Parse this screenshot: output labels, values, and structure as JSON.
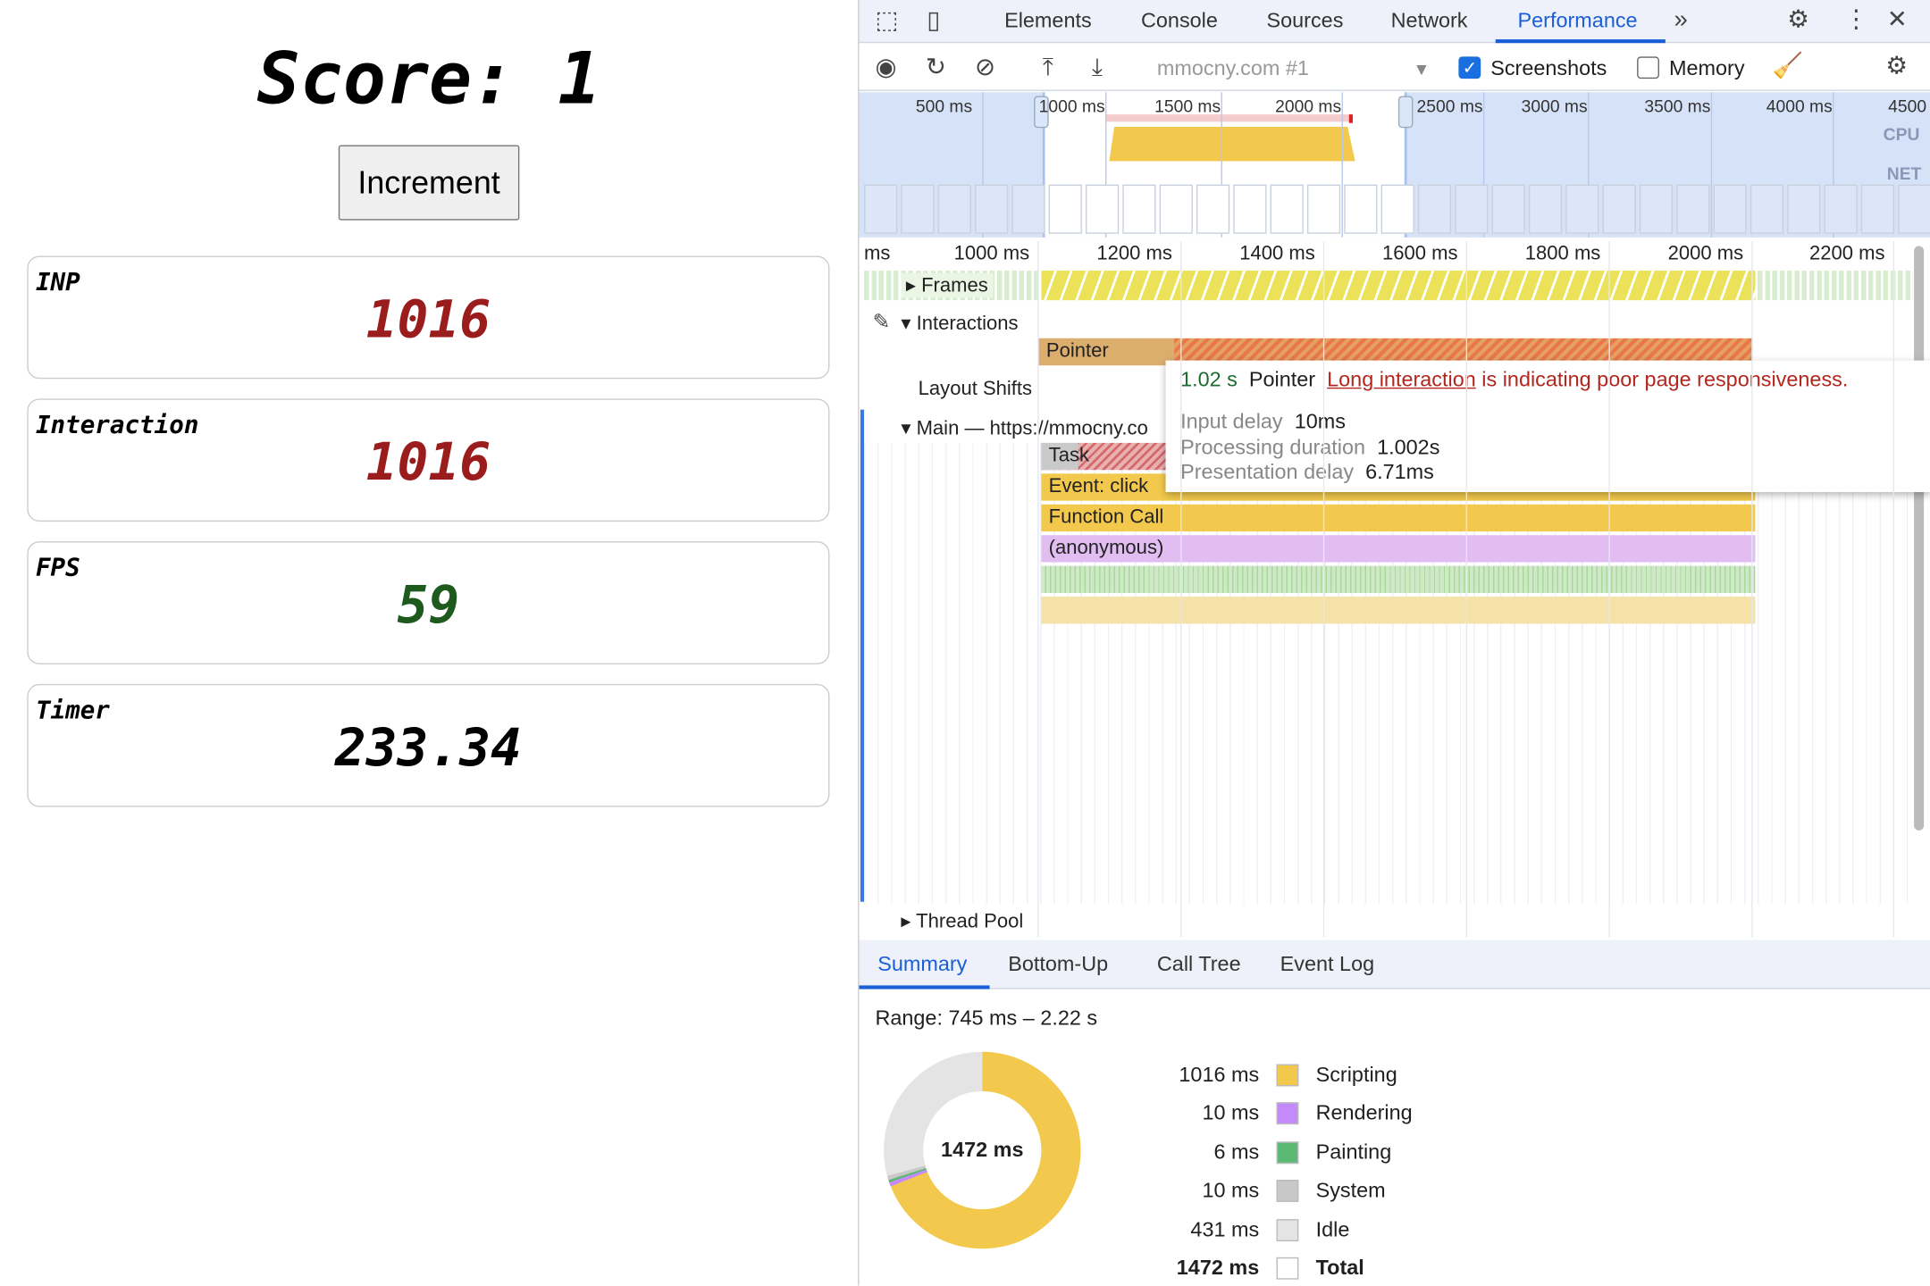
{
  "page": {
    "score_label": "Score:",
    "score_value": "1",
    "increment_label": "Increment",
    "cards": [
      {
        "label": "INP",
        "value": "1016",
        "color": "#9b1c1c"
      },
      {
        "label": "Interaction",
        "value": "1016",
        "color": "#9b1c1c"
      },
      {
        "label": "FPS",
        "value": "59",
        "color": "#1e5a1e"
      },
      {
        "label": "Timer",
        "value": "233.34",
        "color": "#000000"
      }
    ]
  },
  "devtools": {
    "tabs": [
      "Elements",
      "Console",
      "Sources",
      "Network",
      "Performance"
    ],
    "active_tab": "Performance",
    "toolbar": {
      "target": "mmocny.com #1",
      "screenshots_label": "Screenshots",
      "screenshots_checked": true,
      "memory_label": "Memory",
      "memory_checked": false
    },
    "overview": {
      "ticks": [
        "500 ms",
        "1000 ms",
        "1500 ms",
        "2000 ms",
        "2500 ms",
        "3000 ms",
        "3500 ms",
        "4000 ms",
        "4500"
      ],
      "cpu_label": "CPU",
      "net_label": "NET"
    },
    "ruler": [
      "ms",
      "1000 ms",
      "1200 ms",
      "1400 ms",
      "1600 ms",
      "1800 ms",
      "2000 ms",
      "2200 ms"
    ],
    "tracks": {
      "frames": "Frames",
      "interactions": "Interactions",
      "pointer": "Pointer",
      "layout_shifts": "Layout Shifts",
      "main": "Main — https://mmocny.co",
      "thread_pool": "Thread Pool"
    },
    "flame": [
      "Task",
      "Event: click",
      "Function Call",
      "(anonymous)"
    ],
    "tooltip": {
      "duration": "1.02 s",
      "type": "Pointer",
      "link": "Long interaction",
      "message": " is indicating poor page responsiveness.",
      "input_delay_label": "Input delay",
      "input_delay": "10ms",
      "processing_label": "Processing duration",
      "processing": "1.002s",
      "presentation_label": "Presentation delay",
      "presentation": "6.71ms"
    },
    "bottom_tabs": [
      "Summary",
      "Bottom-Up",
      "Call Tree",
      "Event Log"
    ],
    "summary": {
      "range": "Range: 745 ms – 2.22 s",
      "total_center": "1472 ms",
      "rows": [
        {
          "value": "1016 ms",
          "label": "Scripting",
          "color": "#f2c94c",
          "ms": 1016
        },
        {
          "value": "10 ms",
          "label": "Rendering",
          "color": "#c58af9",
          "ms": 10
        },
        {
          "value": "6 ms",
          "label": "Painting",
          "color": "#5bb974",
          "ms": 6
        },
        {
          "value": "10 ms",
          "label": "System",
          "color": "#c8c8c8",
          "ms": 10
        },
        {
          "value": "431 ms",
          "label": "Idle",
          "color": "#e4e4e4",
          "ms": 431
        },
        {
          "value": "1472 ms",
          "label": "Total",
          "color": "#ffffff",
          "ms": 1472
        }
      ]
    }
  }
}
